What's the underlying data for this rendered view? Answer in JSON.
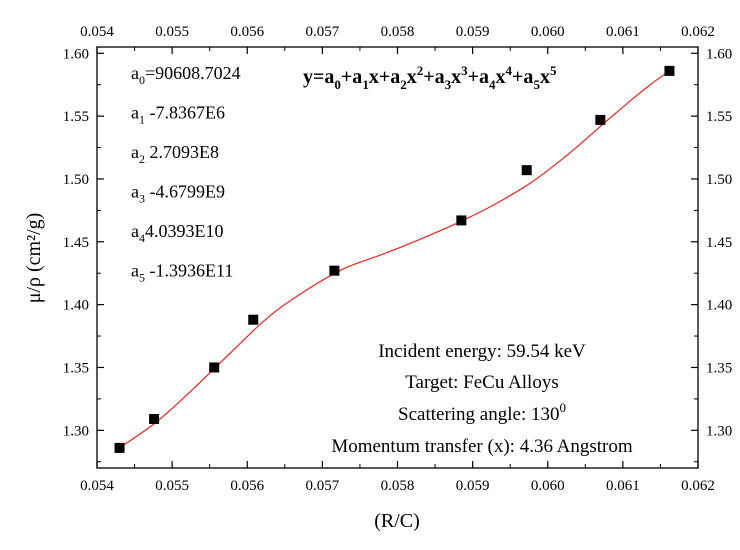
{
  "chart_data": {
    "type": "scatter",
    "xlabel": "(R/C)",
    "ylabel": "μ/ρ (cm²/g)",
    "xlim": [
      0.054,
      0.062
    ],
    "ylim": [
      1.27,
      1.605
    ],
    "x_ticks": [
      "0.054",
      "0.055",
      "0.056",
      "0.057",
      "0.058",
      "0.059",
      "0.060",
      "0.061",
      "0.062"
    ],
    "y_ticks": [
      "1.30",
      "1.35",
      "1.40",
      "1.45",
      "1.50",
      "1.55",
      "1.60"
    ],
    "grid": false,
    "series": [
      {
        "marker": "square",
        "color": "#000000",
        "points": [
          {
            "x": 0.0543,
            "y": 1.286
          },
          {
            "x": 0.05476,
            "y": 1.309
          },
          {
            "x": 0.05556,
            "y": 1.35
          },
          {
            "x": 0.05608,
            "y": 1.388
          },
          {
            "x": 0.05716,
            "y": 1.427
          },
          {
            "x": 0.05885,
            "y": 1.467
          },
          {
            "x": 0.05972,
            "y": 1.507
          },
          {
            "x": 0.0607,
            "y": 1.547
          },
          {
            "x": 0.06162,
            "y": 1.586
          }
        ]
      },
      {
        "type": "line",
        "color": "#e8231f",
        "points": [
          {
            "x": 0.0543,
            "y": 1.286
          },
          {
            "x": 0.0548,
            "y": 1.307
          },
          {
            "x": 0.0553,
            "y": 1.334
          },
          {
            "x": 0.0558,
            "y": 1.363
          },
          {
            "x": 0.0563,
            "y": 1.391
          },
          {
            "x": 0.0568,
            "y": 1.412
          },
          {
            "x": 0.0573,
            "y": 1.429
          },
          {
            "x": 0.0578,
            "y": 1.44
          },
          {
            "x": 0.0583,
            "y": 1.452
          },
          {
            "x": 0.0588,
            "y": 1.465
          },
          {
            "x": 0.0593,
            "y": 1.48
          },
          {
            "x": 0.0598,
            "y": 1.498
          },
          {
            "x": 0.0603,
            "y": 1.521
          },
          {
            "x": 0.0608,
            "y": 1.547
          },
          {
            "x": 0.0613,
            "y": 1.572
          },
          {
            "x": 0.06162,
            "y": 1.586
          }
        ]
      }
    ],
    "coefficients": [
      {
        "sym": "a",
        "sub": "0",
        "value": "=90608.7024"
      },
      {
        "sym": "a",
        "sub": "1",
        "value": " -7.8367E6"
      },
      {
        "sym": "a",
        "sub": "2",
        "value": " 2.7093E8"
      },
      {
        "sym": "a",
        "sub": "3",
        "value": " -4.6799E9"
      },
      {
        "sym": "a",
        "sub": "4",
        "value": "4.0393E10"
      },
      {
        "sym": "a",
        "sub": "5",
        "value": " -1.3936E11"
      }
    ],
    "equation": [
      {
        "t": "y=a"
      },
      {
        "sub": "0"
      },
      {
        "t": "+a"
      },
      {
        "sub": "1"
      },
      {
        "t": "x+a"
      },
      {
        "sub": "2"
      },
      {
        "t": "x"
      },
      {
        "sup": "2"
      },
      {
        "t": "+a"
      },
      {
        "sub": "3"
      },
      {
        "t": "x"
      },
      {
        "sup": "3"
      },
      {
        "t": "+a"
      },
      {
        "sub": "4"
      },
      {
        "t": "x"
      },
      {
        "sup": "4"
      },
      {
        "t": "+a"
      },
      {
        "sub": "5"
      },
      {
        "t": "x"
      },
      {
        "sup": "5"
      }
    ],
    "annotations": [
      {
        "text": "Incident energy: 59.54 keV"
      },
      {
        "text": "Target: FeCu Alloys"
      },
      {
        "text": "Scattering angle: 130",
        "sup": "0"
      },
      {
        "text": "Momentum transfer (x): 4.36 Angstrom"
      }
    ]
  }
}
